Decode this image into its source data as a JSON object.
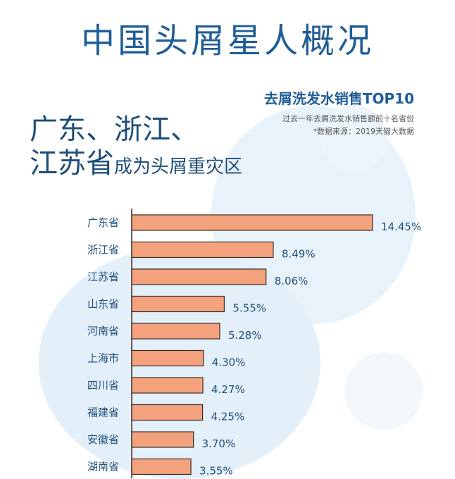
{
  "page": {
    "title": "中国头屑星人概况",
    "subtitle": "去屑洗发水销售TOP10",
    "note_line1": "过去一年去屑洗发水销售额前十名省份",
    "note_line2": "*数据来源：2019天猫大数据",
    "headline_line1": "广东、浙江、",
    "headline_line2_big": "江苏省",
    "headline_line2_small": "成为头屑重灾区"
  },
  "colors": {
    "bar": "#f4a27e",
    "bar_outline": "#3a2c28",
    "title": "#1f5d97",
    "text": "#1f4e79"
  },
  "chart_data": {
    "type": "bar",
    "orientation": "horizontal",
    "title": "去屑洗发水销售TOP10",
    "categories": [
      "广东省",
      "浙江省",
      "江苏省",
      "山东省",
      "河南省",
      "上海市",
      "四川省",
      "福建省",
      "安徽省",
      "湖南省"
    ],
    "values": [
      14.45,
      8.49,
      8.06,
      5.55,
      5.28,
      4.3,
      4.27,
      4.25,
      3.7,
      3.55
    ],
    "value_labels": [
      "14.45%",
      "8.49%",
      "8.06%",
      "5.55%",
      "5.28%",
      "4.30%",
      "4.27%",
      "4.25%",
      "3.70%",
      "3.55%"
    ],
    "unit": "%",
    "xlim": [
      0,
      14.45
    ],
    "grid": false,
    "legend": "none"
  }
}
